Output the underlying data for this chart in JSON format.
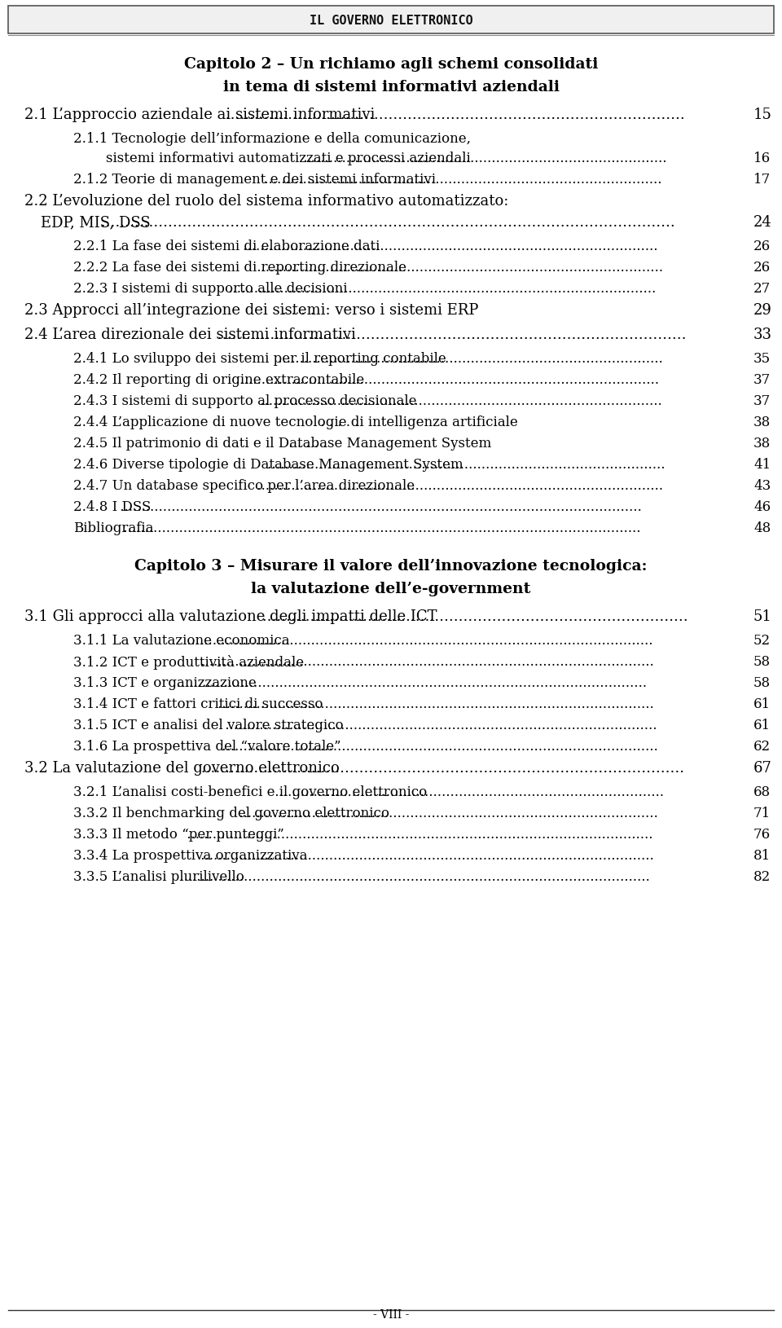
{
  "header_text": "IL GOVERNO ELETTRONICO",
  "footer_text": "- VIII -",
  "bg_color": "#ffffff",
  "header_bg": "#e8e8e8",
  "text_color": "#000000",
  "page_width": 9.6,
  "page_height": 16.31,
  "entries": [
    {
      "type": "chapter_heading",
      "lines": [
        "Capitolo 2 – Un richiamo agli schemi consolidati",
        "in tema di sistemi informativi aziendali"
      ],
      "bold": true,
      "indent": 0,
      "page": null
    },
    {
      "type": "section",
      "text": "2.1 L’approccio aziendale ai sistemi informativi",
      "dots": true,
      "indent": 0,
      "page": "15",
      "bold": false
    },
    {
      "type": "subsection",
      "lines": [
        "2.1.1 Tecnologie dell’informazione e della comunicazione,",
        "sistemi informativi automatizzati e processi aziendali"
      ],
      "dots": true,
      "indent": 1,
      "page": "16",
      "bold": false
    },
    {
      "type": "subsection",
      "lines": [
        "2.1.2 Teorie di management e dei sistemi informativi"
      ],
      "dots": true,
      "indent": 1,
      "page": "17",
      "bold": false
    },
    {
      "type": "section",
      "lines": [
        "2.2 L’evoluzione del ruolo del sistema informativo automatizzato:",
        "EDP, MIS, DSS"
      ],
      "dots": true,
      "indent": 0,
      "page": "24",
      "bold": false
    },
    {
      "type": "subsection",
      "lines": [
        "2.2.1 La fase dei sistemi di elaborazione dati"
      ],
      "dots": true,
      "indent": 1,
      "page": "26",
      "bold": false
    },
    {
      "type": "subsection",
      "lines": [
        "2.2.2 La fase dei sistemi di reporting direzionale"
      ],
      "dots": true,
      "indent": 1,
      "page": "26",
      "bold": false
    },
    {
      "type": "subsection",
      "lines": [
        "2.2.3 I sistemi di supporto alle decisioni"
      ],
      "dots": true,
      "indent": 1,
      "page": "27",
      "bold": false
    },
    {
      "type": "section",
      "lines": [
        "2.3 Approcci all’integrazione dei sistemi: verso i sistemi ERP"
      ],
      "dots": true,
      "dots_style": "sparse",
      "indent": 0,
      "page": "29",
      "bold": false
    },
    {
      "type": "section",
      "lines": [
        "2.4 L’area direzionale dei sistemi informativi"
      ],
      "dots": true,
      "indent": 0,
      "page": "33",
      "bold": false
    },
    {
      "type": "subsection",
      "lines": [
        "2.4.1 Lo sviluppo dei sistemi per il reporting contabile"
      ],
      "dots": true,
      "indent": 1,
      "page": "35",
      "bold": false
    },
    {
      "type": "subsection",
      "lines": [
        "2.4.2 Il reporting di origine extracontabile"
      ],
      "dots": true,
      "indent": 1,
      "page": "37",
      "bold": false
    },
    {
      "type": "subsection",
      "lines": [
        "2.4.3 I sistemi di supporto al processo decisionale"
      ],
      "dots": true,
      "indent": 1,
      "page": "37",
      "bold": false
    },
    {
      "type": "subsection",
      "lines": [
        "2.4.4 L’applicazione di nuove tecnologie di intelligenza artificiale"
      ],
      "dots": true,
      "dots_style": "sparse",
      "indent": 1,
      "page": "38",
      "bold": false
    },
    {
      "type": "subsection",
      "lines": [
        "2.4.5 Il patrimonio di dati e il Database Management System"
      ],
      "dots": true,
      "dots_style": "sparse",
      "indent": 1,
      "page": "38",
      "bold": false
    },
    {
      "type": "subsection",
      "lines": [
        "2.4.6 Diverse tipologie di Database Management System"
      ],
      "dots": true,
      "indent": 1,
      "page": "41",
      "bold": false
    },
    {
      "type": "subsection",
      "lines": [
        "2.4.7 Un database specifico per l’area direzionale"
      ],
      "dots": true,
      "indent": 1,
      "page": "43",
      "bold": false
    },
    {
      "type": "subsection",
      "lines": [
        "2.4.8 I DSS"
      ],
      "dots": true,
      "indent": 1,
      "page": "46",
      "bold": false
    },
    {
      "type": "subsection",
      "lines": [
        "Bibliografia"
      ],
      "dots": true,
      "indent": 1,
      "page": "48",
      "bold": false
    },
    {
      "type": "spacer"
    },
    {
      "type": "chapter_heading",
      "lines": [
        "Capitolo 3 – Misurare il valore dell’innovazione tecnologica:",
        "la valutazione dell’e-government"
      ],
      "bold": true,
      "indent": 0,
      "page": null
    },
    {
      "type": "section",
      "lines": [
        "3.1 Gli approcci alla valutazione degli impatti delle ICT"
      ],
      "dots": true,
      "indent": 0,
      "page": "51",
      "bold": false
    },
    {
      "type": "subsection",
      "lines": [
        "3.1.1 La valutazione economica"
      ],
      "dots": true,
      "indent": 1,
      "page": "52",
      "bold": false
    },
    {
      "type": "subsection",
      "lines": [
        "3.1.2 ICT e produttività aziendale"
      ],
      "dots": true,
      "indent": 1,
      "page": "58",
      "bold": false
    },
    {
      "type": "subsection",
      "lines": [
        "3.1.3 ICT e organizzazione"
      ],
      "dots": true,
      "indent": 1,
      "page": "58",
      "bold": false
    },
    {
      "type": "subsection",
      "lines": [
        "3.1.4 ICT e fattori critici di successo"
      ],
      "dots": true,
      "indent": 1,
      "page": "61",
      "bold": false
    },
    {
      "type": "subsection",
      "lines": [
        "3.1.5 ICT e analisi del valore strategico"
      ],
      "dots": true,
      "indent": 1,
      "page": "61",
      "bold": false
    },
    {
      "type": "subsection",
      "lines": [
        "3.1.6 La prospettiva del “valore totale”"
      ],
      "dots": true,
      "indent": 1,
      "page": "62",
      "bold": false
    },
    {
      "type": "section",
      "lines": [
        "3.2 La valutazione del governo elettronico"
      ],
      "dots": true,
      "indent": 0,
      "page": "67",
      "bold": false
    },
    {
      "type": "subsection",
      "lines": [
        "3.2.1 L’analisi costi-benefici e il governo elettronico"
      ],
      "dots": true,
      "indent": 1,
      "page": "68",
      "bold": false
    },
    {
      "type": "subsection",
      "lines": [
        "3.3.2 Il benchmarking del governo elettronico"
      ],
      "dots": true,
      "indent": 1,
      "page": "71",
      "bold": false
    },
    {
      "type": "subsection",
      "lines": [
        "3.3.3 Il metodo “per punteggi”"
      ],
      "dots": true,
      "indent": 1,
      "page": "76",
      "bold": false
    },
    {
      "type": "subsection",
      "lines": [
        "3.3.4 La prospettiva organizzativa"
      ],
      "dots": true,
      "indent": 1,
      "page": "81",
      "bold": false
    },
    {
      "type": "subsection",
      "lines": [
        "3.3.5 L’analisi plurilivello"
      ],
      "dots": true,
      "indent": 1,
      "page": "82",
      "bold": false
    }
  ]
}
